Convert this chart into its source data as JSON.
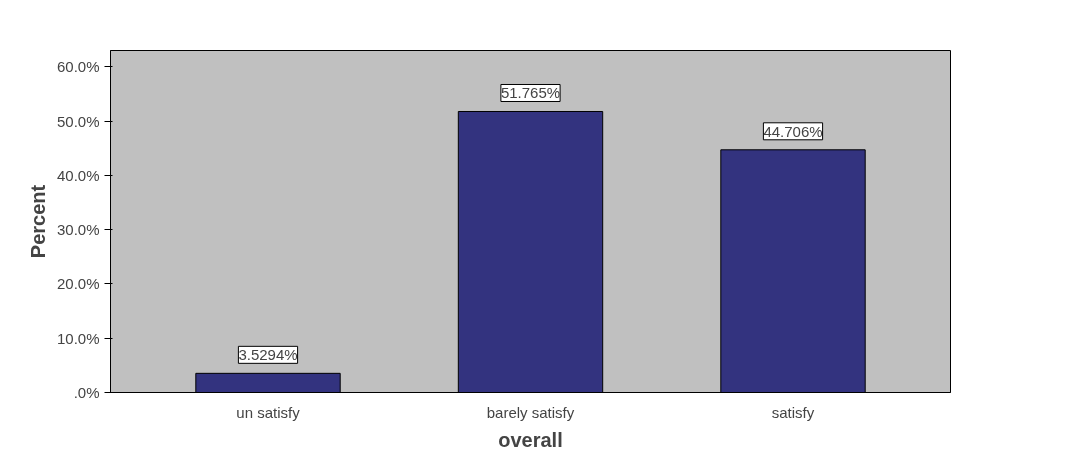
{
  "chart_data": {
    "type": "bar",
    "xlabel": "overall",
    "ylabel": "Percent",
    "categories": [
      "un satisfy",
      "barely satisfy",
      "satisfy"
    ],
    "values": [
      3.5294,
      51.765,
      44.706
    ],
    "color": "#33337f",
    "ylim": [
      0,
      63
    ],
    "yticks": [
      {
        "value": 0,
        "label": ".0%"
      },
      {
        "value": 10,
        "label": "10.0%"
      },
      {
        "value": 20,
        "label": "20.0%"
      },
      {
        "value": 30,
        "label": "30.0%"
      },
      {
        "value": 40,
        "label": "40.0%"
      },
      {
        "value": 50,
        "label": "50.0%"
      },
      {
        "value": 60,
        "label": "60.0%"
      }
    ],
    "value_labels": [
      "3.5294%",
      "51.765%",
      "44.706%"
    ],
    "grid": false
  }
}
